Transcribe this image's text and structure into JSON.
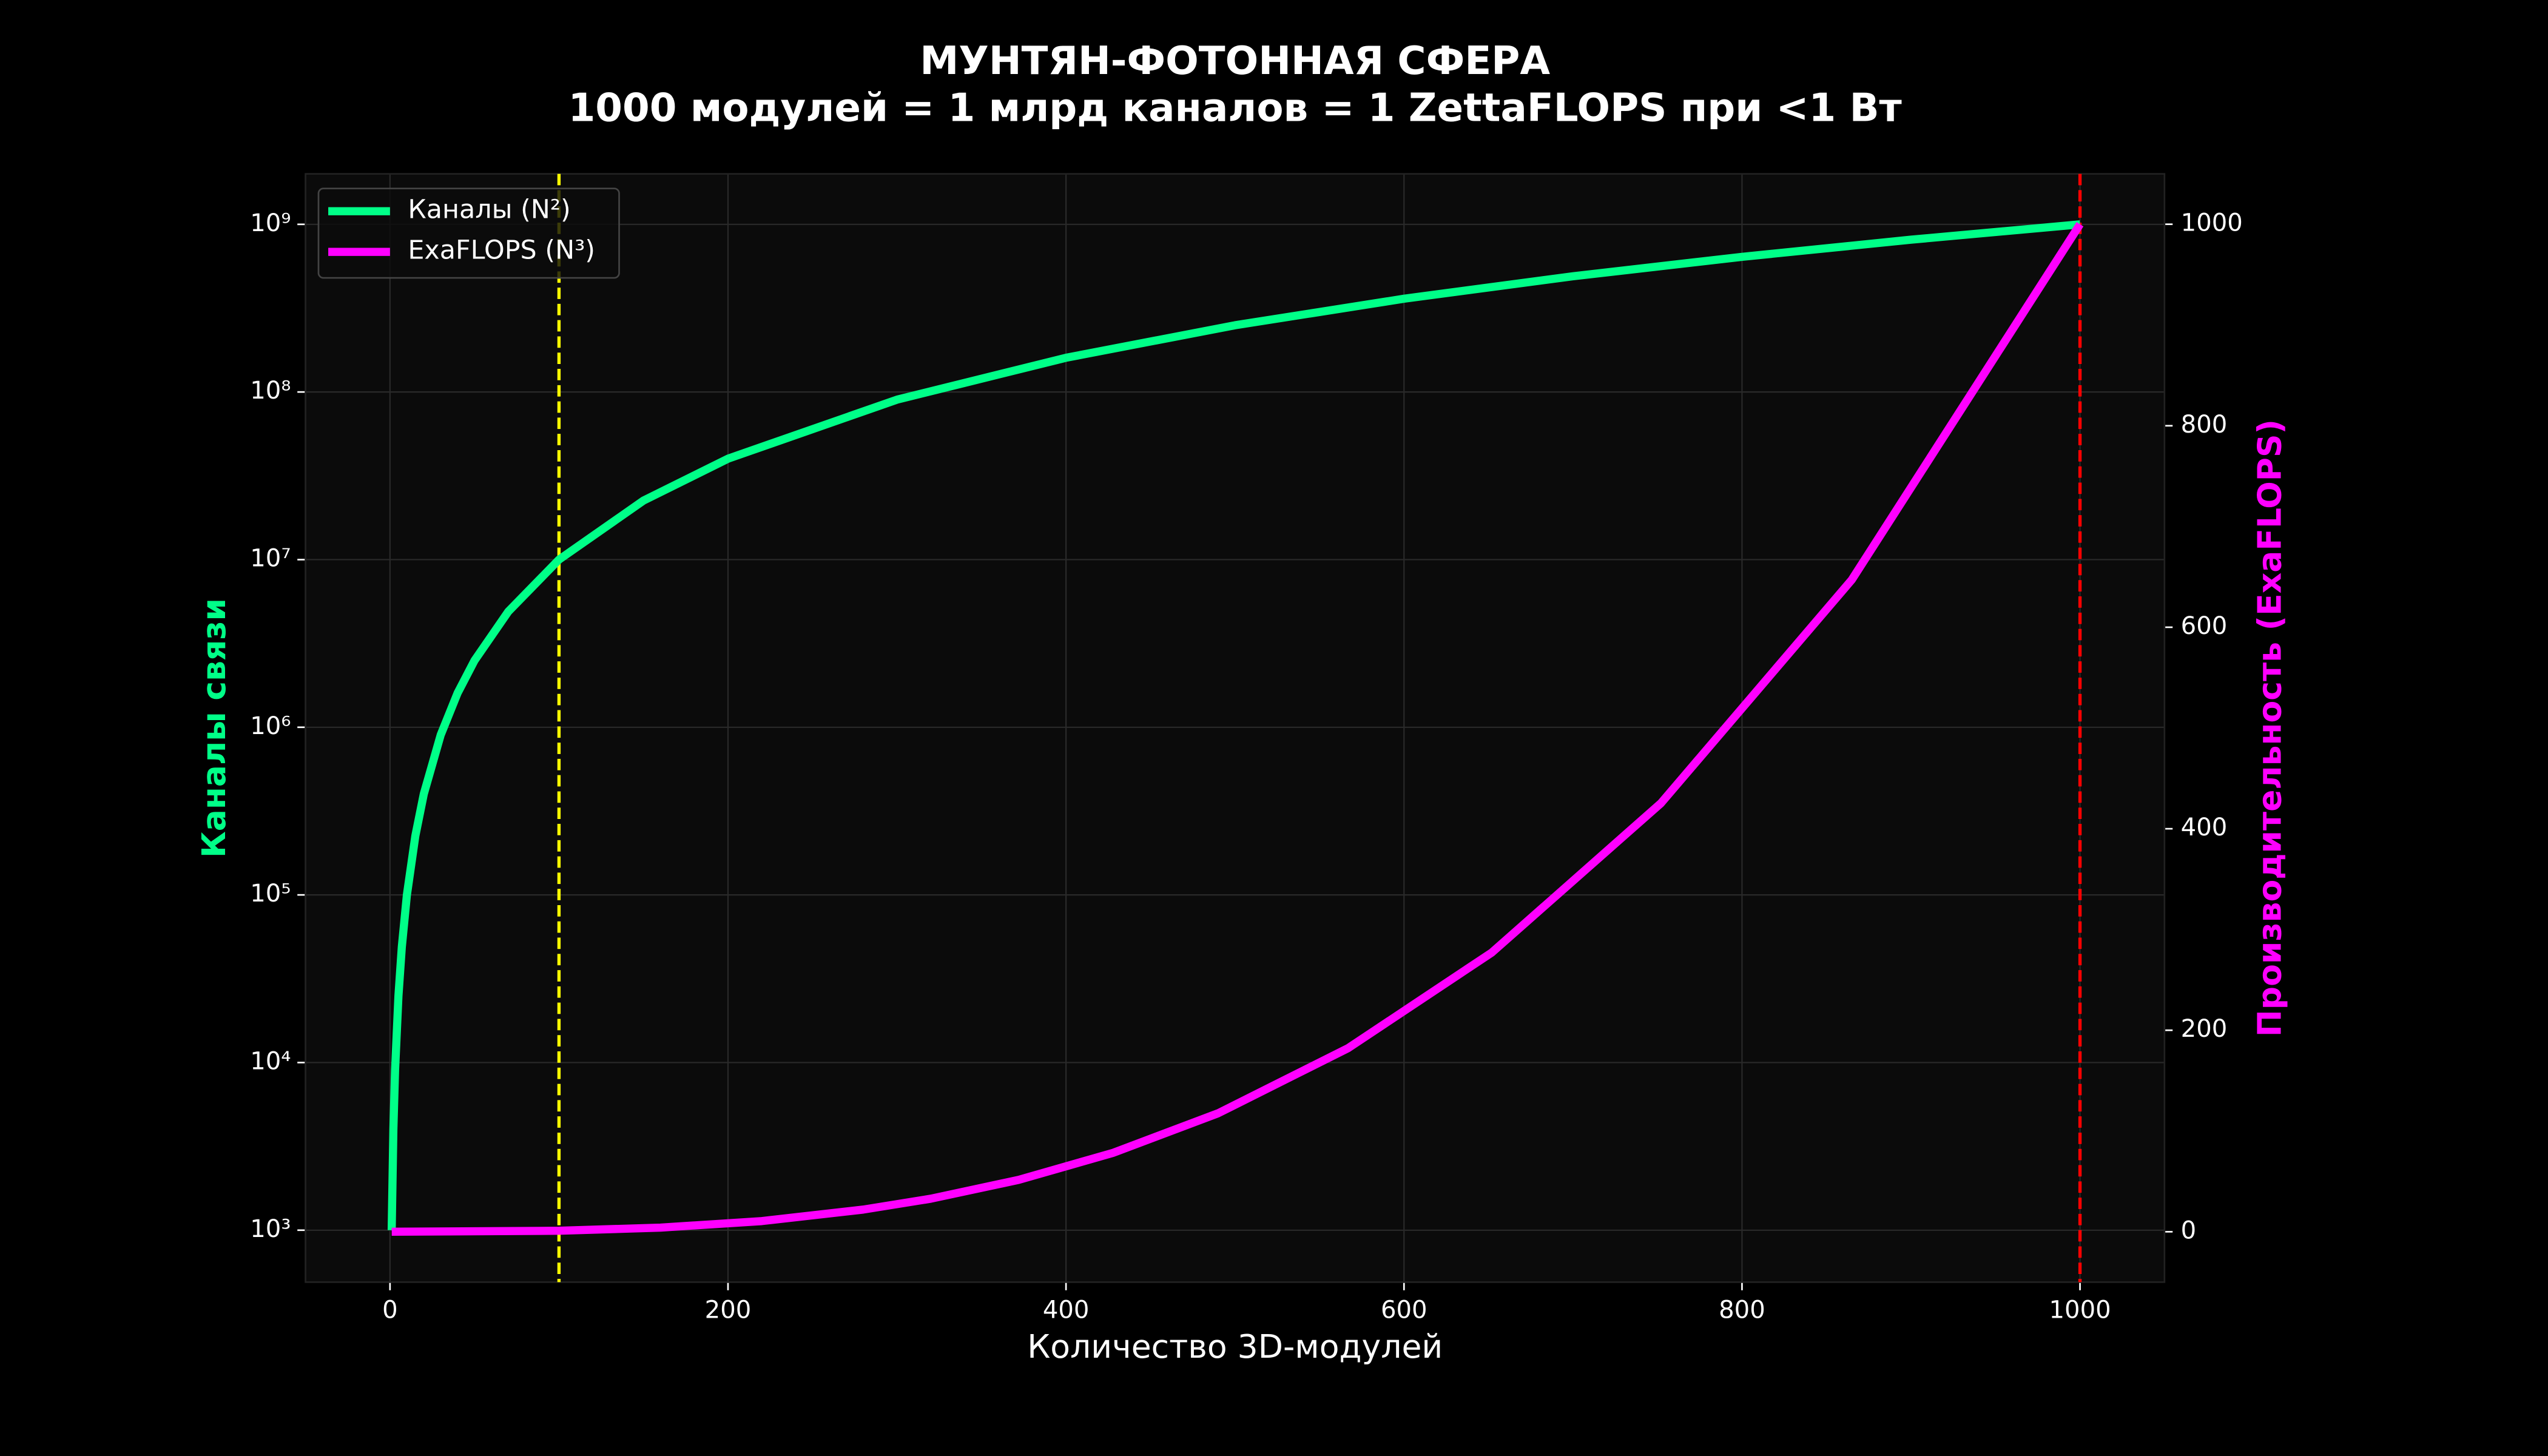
{
  "chart_data": {
    "type": "line",
    "title": "МУНТЯН-ФОТОННАЯ СФЕРА",
    "subtitle": "1000 модулей = 1 млрд каналов = 1 ZettaFLOPS при <1 Вт",
    "xlabel": "Количество 3D-модулей",
    "ylabel": "Каналы связи",
    "y2label": "Производительность (ExaFLOPS)",
    "ylabel_color": "#00ff88",
    "y2label_color": "#ff00ff",
    "xlim": [
      -50,
      1050
    ],
    "xticks": [
      0,
      200,
      400,
      600,
      800,
      1000
    ],
    "ylim": [
      490,
      2000000000
    ],
    "yscale": "log",
    "yticks": [
      {
        "value": 1000,
        "label": "10³"
      },
      {
        "value": 10000,
        "label": "10⁴"
      },
      {
        "value": 100000,
        "label": "10⁵"
      },
      {
        "value": 1000000,
        "label": "10⁶"
      },
      {
        "value": 10000000,
        "label": "10⁷"
      },
      {
        "value": 100000000,
        "label": "10⁸"
      },
      {
        "value": 1000000000,
        "label": "10⁹"
      }
    ],
    "y2lim": [
      -50,
      1050
    ],
    "y2ticks": [
      0,
      200,
      400,
      600,
      800,
      1000
    ],
    "grid": true,
    "legend": "upper left",
    "vlines": [
      {
        "x": 100,
        "color": "#ffff00"
      },
      {
        "x": 1000,
        "color": "#ff0000"
      }
    ],
    "series": [
      {
        "name": "Каналы (N²)",
        "color": "#00ff88",
        "axis": "y",
        "x": [
          1,
          2,
          3,
          5,
          7,
          10,
          15,
          20,
          30,
          40,
          50,
          70,
          100,
          150,
          200,
          300,
          400,
          500,
          600,
          700,
          800,
          900,
          1000
        ],
        "values": [
          1000,
          4000,
          9000,
          25000,
          49000,
          100000,
          225000,
          400000,
          900000,
          1600000,
          2500000,
          4900000,
          10000000,
          22500000,
          40000000,
          90000000,
          160000000,
          250000000,
          360000000,
          490000000,
          640000000,
          810000000,
          1000000000
        ]
      },
      {
        "name": "ExaFLOPS (N³)",
        "color": "#ff00ff",
        "axis": "y2",
        "x": [
          1,
          100,
          160,
          220,
          280,
          320,
          372,
          428,
          490,
          567,
          652,
          752,
          865,
          1000
        ],
        "values": [
          0,
          1,
          4.1,
          10.6,
          22,
          32.8,
          51.5,
          78.4,
          117.6,
          182.3,
          277.2,
          425.3,
          647.2,
          1000
        ]
      }
    ]
  }
}
